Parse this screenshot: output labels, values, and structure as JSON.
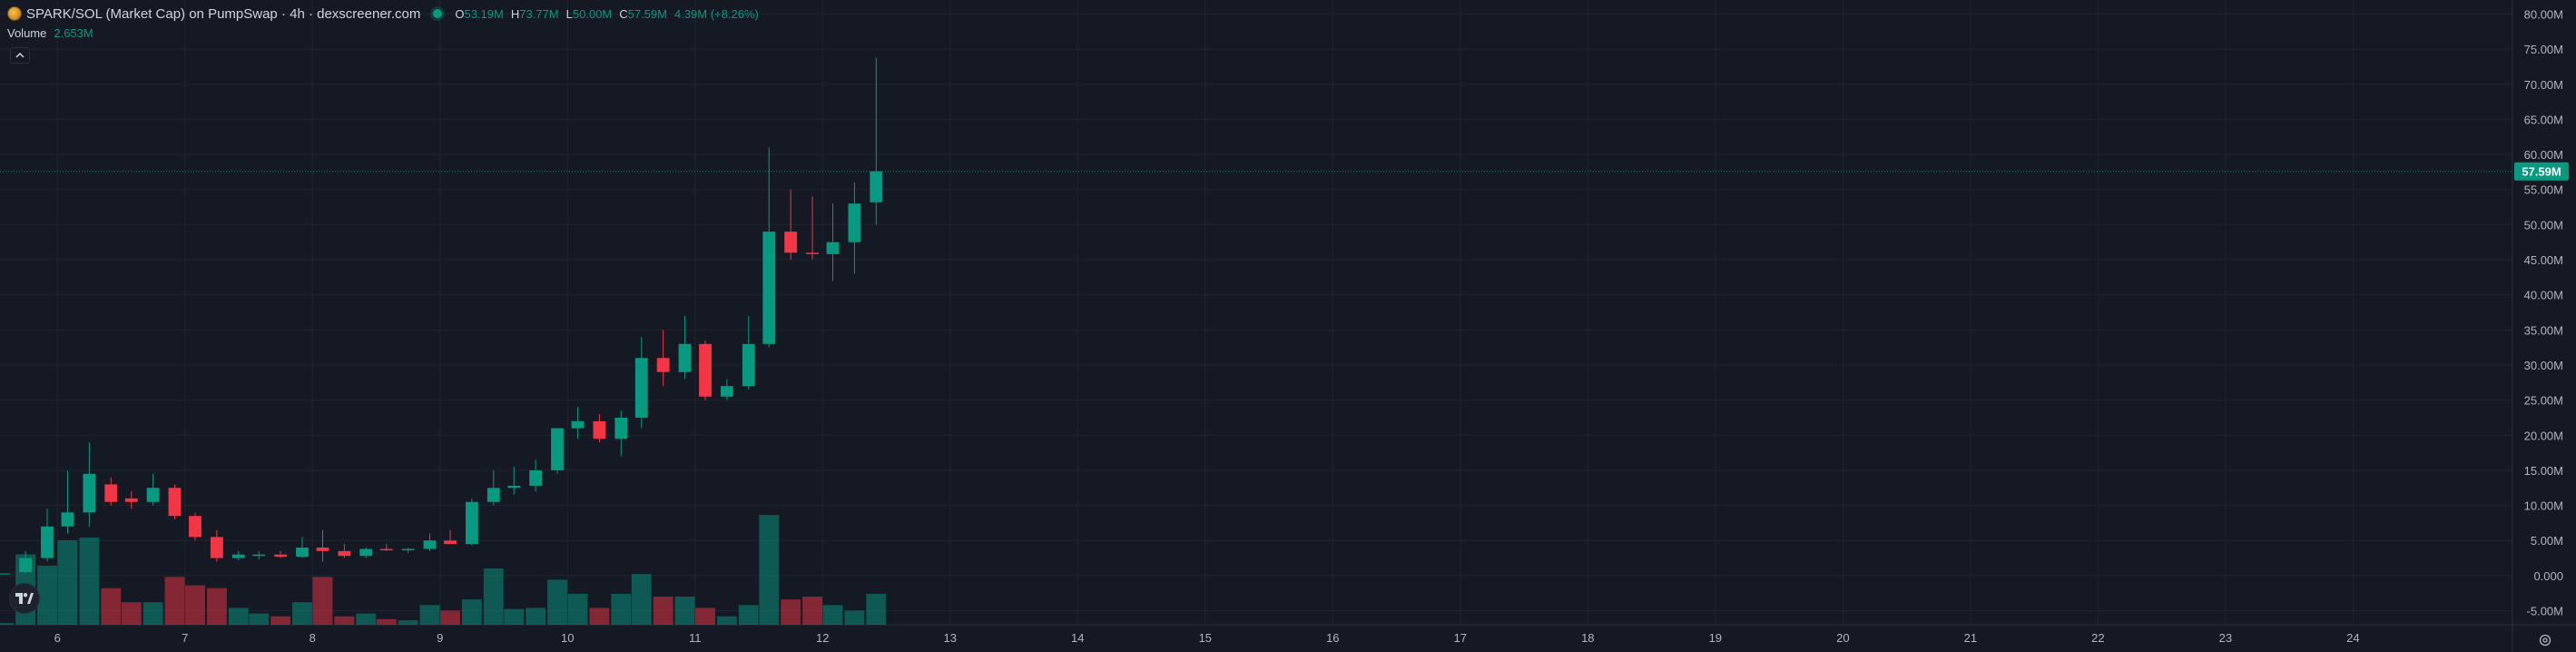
{
  "header": {
    "title": "SPARK/SOL (Market Cap) on PumpSwap · 4h · dexscreener.com",
    "ohlc": {
      "o_label": "O",
      "o_value": "53.19M",
      "h_label": "H",
      "h_value": "73.77M",
      "l_label": "L",
      "l_value": "50.00M",
      "c_label": "C",
      "c_value": "57.59M"
    },
    "change": "4.39M (+8.26%)"
  },
  "volume_legend": {
    "label": "Volume",
    "value": "2.653M"
  },
  "colors": {
    "up": "#089981",
    "down": "#f23645",
    "background": "#151924",
    "grid": "#1f2430"
  },
  "icons": {
    "token": "token-logo-icon",
    "status": "live-status-icon",
    "collapse": "chevron-up-icon",
    "brand": "tradingview-logo-icon",
    "settings": "settings-icon"
  },
  "chart_data": {
    "type": "candlestick",
    "title": "SPARK/SOL (Market Cap) on PumpSwap · 4h · dexscreener.com",
    "y_ticks": [
      "80.00M",
      "75.00M",
      "70.00M",
      "65.00M",
      "60.00M",
      "55.00M",
      "50.00M",
      "45.00M",
      "40.00M",
      "35.00M",
      "30.00M",
      "25.00M",
      "20.00M",
      "15.00M",
      "10.00M",
      "5.00M",
      "0.000",
      "-5.00M"
    ],
    "y_tick_values": [
      80,
      75,
      70,
      65,
      60,
      55,
      50,
      45,
      40,
      35,
      30,
      25,
      20,
      15,
      10,
      5,
      0,
      -5
    ],
    "ylim": [
      -7,
      82
    ],
    "x_ticks": [
      "6",
      "7",
      "8",
      "9",
      "10",
      "11",
      "12",
      "13",
      "14",
      "15",
      "16",
      "17",
      "18",
      "19",
      "20",
      "21",
      "22",
      "23",
      "24"
    ],
    "x_tick_values": [
      6,
      7,
      8,
      9,
      10,
      11,
      12,
      13,
      14,
      15,
      16,
      17,
      18,
      19,
      20,
      21,
      22,
      23,
      24
    ],
    "xlim": [
      5.55,
      25.25
    ],
    "current_price_label": "57.59M",
    "current_price": 57.59,
    "candles": [
      {
        "t": 5.58,
        "o": 0.2,
        "h": 0.3,
        "l": 0.1,
        "c": 0.3,
        "v": 0.3
      },
      {
        "t": 5.75,
        "o": 0.5,
        "h": 3.5,
        "l": 0.3,
        "c": 2.5,
        "v": 12.5
      },
      {
        "t": 5.92,
        "o": 2.5,
        "h": 9.5,
        "l": 2.0,
        "c": 7.0,
        "v": 10.5
      },
      {
        "t": 6.08,
        "o": 7.0,
        "h": 15.0,
        "l": 6.0,
        "c": 9.0,
        "v": 15.0
      },
      {
        "t": 6.25,
        "o": 9.0,
        "h": 19.0,
        "l": 7.0,
        "c": 14.5,
        "v": 15.5
      },
      {
        "t": 6.42,
        "o": 13.0,
        "h": 14.0,
        "l": 10.0,
        "c": 10.5,
        "v": 6.5
      },
      {
        "t": 6.58,
        "o": 11.0,
        "h": 12.0,
        "l": 9.5,
        "c": 10.5,
        "v": 4.0
      },
      {
        "t": 6.75,
        "o": 10.5,
        "h": 14.5,
        "l": 10.0,
        "c": 12.5,
        "v": 4.0
      },
      {
        "t": 6.92,
        "o": 12.5,
        "h": 13.0,
        "l": 8.0,
        "c": 8.5,
        "v": 8.5
      },
      {
        "t": 7.08,
        "o": 8.5,
        "h": 9.0,
        "l": 5.0,
        "c": 5.5,
        "v": 7.0
      },
      {
        "t": 7.25,
        "o": 5.5,
        "h": 6.5,
        "l": 2.0,
        "c": 2.5,
        "v": 6.5
      },
      {
        "t": 7.42,
        "o": 2.5,
        "h": 3.5,
        "l": 2.2,
        "c": 3.0,
        "v": 3.0
      },
      {
        "t": 7.58,
        "o": 2.8,
        "h": 3.5,
        "l": 2.3,
        "c": 3.0,
        "v": 2.0
      },
      {
        "t": 7.75,
        "o": 3.0,
        "h": 3.5,
        "l": 2.5,
        "c": 2.7,
        "v": 1.5
      },
      {
        "t": 7.92,
        "o": 2.7,
        "h": 5.5,
        "l": 2.5,
        "c": 4.0,
        "v": 4.0
      },
      {
        "t": 8.08,
        "o": 4.0,
        "h": 6.5,
        "l": 2.0,
        "c": 3.5,
        "v": 8.5
      },
      {
        "t": 8.25,
        "o": 3.5,
        "h": 4.5,
        "l": 2.5,
        "c": 2.8,
        "v": 1.5
      },
      {
        "t": 8.42,
        "o": 2.8,
        "h": 4.0,
        "l": 2.5,
        "c": 3.8,
        "v": 2.0
      },
      {
        "t": 8.58,
        "o": 3.8,
        "h": 4.5,
        "l": 3.5,
        "c": 3.6,
        "v": 1.0
      },
      {
        "t": 8.75,
        "o": 3.6,
        "h": 4.0,
        "l": 3.2,
        "c": 3.8,
        "v": 0.8
      },
      {
        "t": 8.92,
        "o": 3.8,
        "h": 6.0,
        "l": 3.5,
        "c": 5.0,
        "v": 3.5
      },
      {
        "t": 9.08,
        "o": 5.0,
        "h": 6.5,
        "l": 4.5,
        "c": 4.5,
        "v": 2.5
      },
      {
        "t": 9.25,
        "o": 4.5,
        "h": 11.0,
        "l": 4.3,
        "c": 10.5,
        "v": 4.5
      },
      {
        "t": 9.42,
        "o": 10.5,
        "h": 15.0,
        "l": 10.0,
        "c": 12.5,
        "v": 10.0
      },
      {
        "t": 9.58,
        "o": 12.5,
        "h": 15.5,
        "l": 11.5,
        "c": 12.8,
        "v": 2.8
      },
      {
        "t": 9.75,
        "o": 12.8,
        "h": 16.5,
        "l": 12.0,
        "c": 15.0,
        "v": 3.0
      },
      {
        "t": 9.92,
        "o": 15.0,
        "h": 21.0,
        "l": 14.5,
        "c": 21.0,
        "v": 8.0
      },
      {
        "t": 10.08,
        "o": 21.0,
        "h": 24.0,
        "l": 19.5,
        "c": 22.0,
        "v": 5.5
      },
      {
        "t": 10.25,
        "o": 22.0,
        "h": 23.0,
        "l": 19.0,
        "c": 19.5,
        "v": 3.0
      },
      {
        "t": 10.42,
        "o": 19.5,
        "h": 23.5,
        "l": 17.0,
        "c": 22.5,
        "v": 5.5
      },
      {
        "t": 10.58,
        "o": 22.5,
        "h": 34.0,
        "l": 21.0,
        "c": 31.0,
        "v": 9.0
      },
      {
        "t": 10.75,
        "o": 31.0,
        "h": 35.0,
        "l": 27.0,
        "c": 29.0,
        "v": 5.0
      },
      {
        "t": 10.92,
        "o": 29.0,
        "h": 37.0,
        "l": 28.0,
        "c": 33.0,
        "v": 5.0
      },
      {
        "t": 11.08,
        "o": 33.0,
        "h": 33.5,
        "l": 25.0,
        "c": 25.5,
        "v": 3.0
      },
      {
        "t": 11.25,
        "o": 25.5,
        "h": 28.0,
        "l": 25.0,
        "c": 27.0,
        "v": 1.5
      },
      {
        "t": 11.42,
        "o": 27.0,
        "h": 37.0,
        "l": 26.5,
        "c": 33.0,
        "v": 3.5
      },
      {
        "t": 11.58,
        "o": 33.0,
        "h": 61.0,
        "l": 32.5,
        "c": 49.0,
        "v": 19.5
      },
      {
        "t": 11.75,
        "o": 49.0,
        "h": 55.0,
        "l": 45.0,
        "c": 46.0,
        "v": 4.5
      },
      {
        "t": 11.92,
        "o": 46.0,
        "h": 54.0,
        "l": 45.0,
        "c": 45.8,
        "v": 5.0
      },
      {
        "t": 12.08,
        "o": 45.8,
        "h": 53.0,
        "l": 42.0,
        "c": 47.5,
        "v": 3.5
      },
      {
        "t": 12.25,
        "o": 47.5,
        "h": 56.0,
        "l": 43.0,
        "c": 53.0,
        "v": 2.5
      },
      {
        "t": 12.42,
        "o": 53.19,
        "h": 73.77,
        "l": 50.0,
        "c": 57.59,
        "v": 5.5
      }
    ]
  }
}
